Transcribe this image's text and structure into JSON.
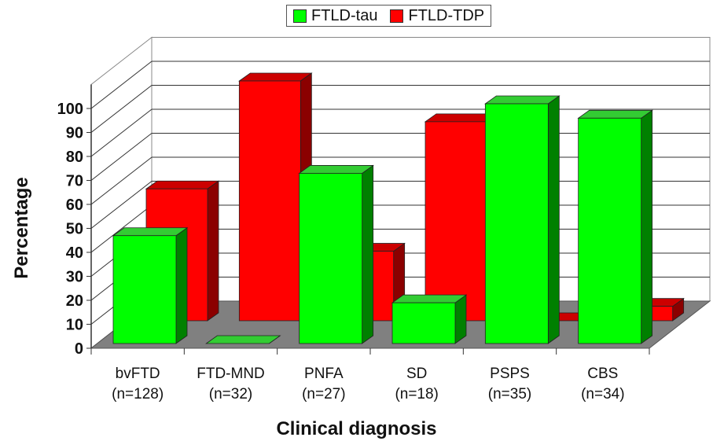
{
  "chart_data": {
    "type": "bar",
    "title": "",
    "xlabel": "Clinical diagnosis",
    "ylabel": "Percentage",
    "ylim": [
      0,
      100
    ],
    "yticks": [
      "0",
      "10",
      "20",
      "30",
      "40",
      "50",
      "60",
      "70",
      "80",
      "90",
      "100"
    ],
    "categories": [
      "bvFTD",
      "FTD-MND",
      "PNFA",
      "SD",
      "PSPS",
      "CBS"
    ],
    "category_counts": [
      "(n=128)",
      "(n=32)",
      "(n=27)",
      "(n=18)",
      "(n=35)",
      "(n=34)"
    ],
    "series": [
      {
        "name": "FTLD-tau",
        "color": "#00ff00",
        "side_color": "#008000",
        "top_color": "#33cc33",
        "values": [
          45,
          0,
          71,
          17,
          100,
          94
        ]
      },
      {
        "name": "FTLD-TDP",
        "color": "#ff0000",
        "side_color": "#8b0000",
        "top_color": "#cc0000",
        "values": [
          55,
          100,
          29,
          83,
          0,
          6
        ]
      }
    ],
    "legend_position": "top",
    "grid": true
  }
}
